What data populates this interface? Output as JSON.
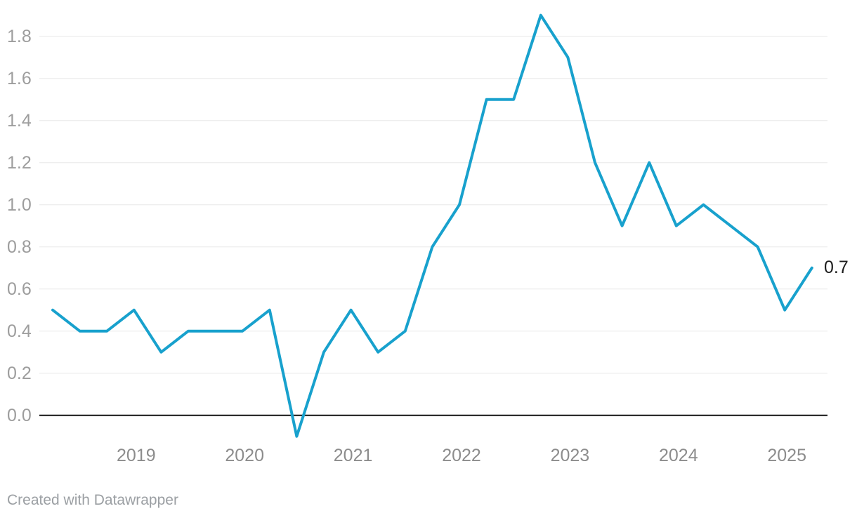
{
  "chart_data": {
    "type": "line",
    "title": "",
    "x": [
      "2018 Q2",
      "2018 Q3",
      "2018 Q4",
      "2019 Q1",
      "2019 Q2",
      "2019 Q3",
      "2019 Q4",
      "2020 Q1",
      "2020 Q2",
      "2020 Q3",
      "2020 Q4",
      "2021 Q1",
      "2021 Q2",
      "2021 Q3",
      "2021 Q4",
      "2022 Q1",
      "2022 Q2",
      "2022 Q3",
      "2022 Q4",
      "2023 Q1",
      "2023 Q2",
      "2023 Q3",
      "2023 Q4",
      "2024 Q1",
      "2024 Q2",
      "2024 Q3",
      "2024 Q4",
      "2025 Q1",
      "2025 Q2"
    ],
    "values": [
      0.5,
      0.4,
      0.4,
      0.5,
      0.3,
      0.4,
      0.4,
      0.4,
      0.5,
      -0.1,
      0.3,
      0.5,
      0.3,
      0.4,
      0.8,
      1.0,
      1.5,
      1.5,
      1.9,
      1.7,
      1.2,
      0.9,
      1.2,
      0.9,
      1.0,
      0.9,
      0.8,
      0.5,
      0.7
    ],
    "y_ticks": [
      "0.0",
      "0.2",
      "0.4",
      "0.6",
      "0.8",
      "1.0",
      "1.2",
      "1.4",
      "1.6",
      "1.8"
    ],
    "y_tick_values": [
      0,
      0.2,
      0.4,
      0.6,
      0.8,
      1.0,
      1.2,
      1.4,
      1.6,
      1.8
    ],
    "x_tick_labels": [
      "2019",
      "2020",
      "2021",
      "2022",
      "2023",
      "2024",
      "2025"
    ],
    "x_tick_indices": [
      3,
      7,
      11,
      15,
      19,
      23,
      27
    ],
    "ylim": [
      -0.15,
      1.95
    ],
    "grid": "horizontal",
    "legend": "none",
    "zero_line": true,
    "end_label": "0.7"
  },
  "footer": {
    "attribution": "Created with Datawrapper"
  },
  "colors": {
    "line": "#18a1cd",
    "grid": "#e8e8e8",
    "zero_line": "#111111",
    "y_label_text": "#9d9d9d",
    "x_label_text": "#8c8c8c",
    "end_label_text": "#1d1d1d",
    "attribution_text": "#9b9fa3",
    "background": "#ffffff"
  }
}
